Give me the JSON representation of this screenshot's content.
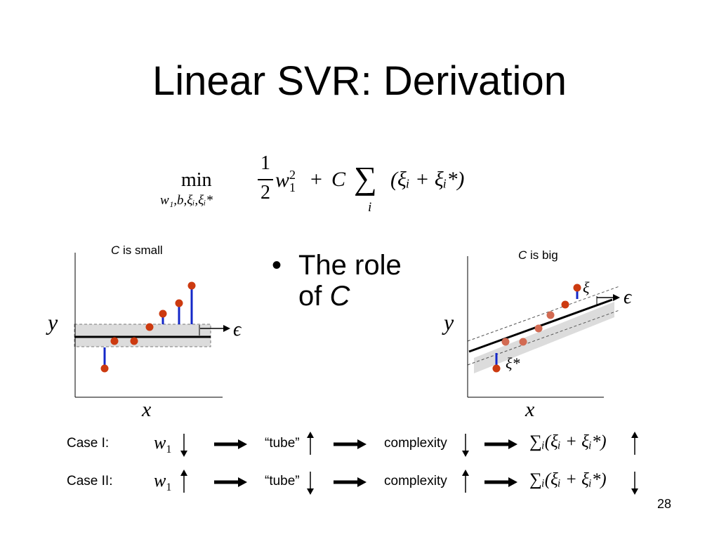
{
  "title": "Linear SVR: Derivation",
  "objective": {
    "operator": "min",
    "subscript_vars": "w₁,b,ξᵢ,ξᵢ*",
    "fraction_num": "1",
    "fraction_den": "2",
    "term1": "w",
    "term1_sub": "1",
    "term1_sup": "2",
    "plus": "+",
    "constant": "C",
    "sum_symbol": "∑",
    "sum_index": "i",
    "sum_body": "(ξᵢ + ξᵢ*)"
  },
  "bullet": {
    "line1": "The role",
    "line2_prefix": "of ",
    "line2_var": "C"
  },
  "left_plot": {
    "caption_var": "C",
    "caption_rest": " is small",
    "ylabel": "y",
    "xlabel": "x",
    "epsilon": "ϵ"
  },
  "right_plot": {
    "caption_var": "C",
    "caption_rest": " is big",
    "ylabel": "y",
    "xlabel": "x",
    "epsilon": "ϵ",
    "xi": "ξ",
    "xi_star": "ξ*"
  },
  "cases": [
    {
      "label": "Case I:",
      "w": "w",
      "w_sub": "1",
      "w_dir": "down",
      "tube": "“tube”",
      "tube_dir": "up",
      "complexity": "complexity",
      "complexity_dir": "down",
      "sum": "∑ᵢ(ξᵢ + ξᵢ*)",
      "sum_dir": "up"
    },
    {
      "label": "Case II:",
      "w": "w",
      "w_sub": "1",
      "w_dir": "up",
      "tube": "“tube”",
      "tube_dir": "down",
      "complexity": "complexity",
      "complexity_dir": "up",
      "sum": "∑ᵢ(ξᵢ + ξᵢ*)",
      "sum_dir": "down"
    }
  ],
  "page_number": "28",
  "colors": {
    "point": "#cc3a10",
    "slack": "#1428c8",
    "tube": "#dcdcdc"
  }
}
